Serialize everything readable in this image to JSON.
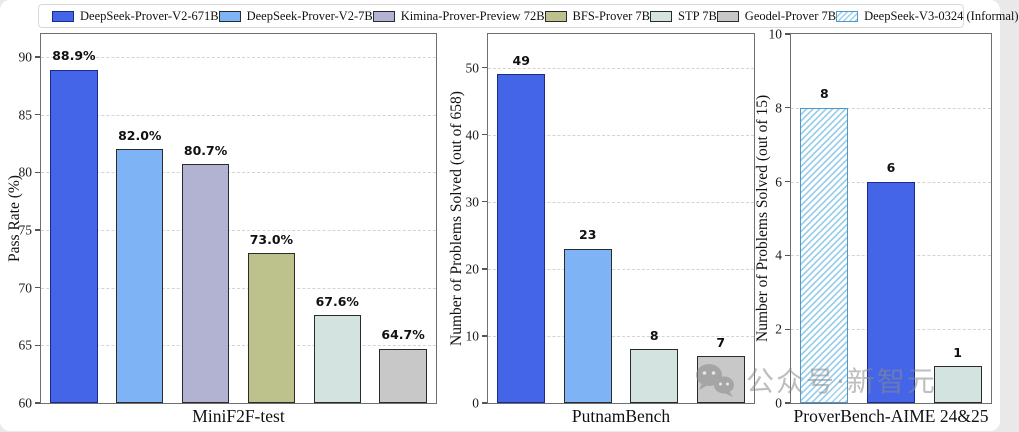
{
  "legend": {
    "items": [
      {
        "name": "DeepSeek-Prover-V2-671B",
        "fill": "#4565E8",
        "edge": "#1c2b87",
        "hatch": false
      },
      {
        "name": "DeepSeek-Prover-V2-7B",
        "fill": "#7EB3F5",
        "edge": "#2b2b2b",
        "hatch": false
      },
      {
        "name": "Kimina-Prover-Preview 72B",
        "fill": "#B2B3D3",
        "edge": "#2b2b2b",
        "hatch": false
      },
      {
        "name": "BFS-Prover 7B",
        "fill": "#BDC18C",
        "edge": "#2b2b2b",
        "hatch": false
      },
      {
        "name": "STP 7B",
        "fill": "#D3E3DF",
        "edge": "#2b2b2b",
        "hatch": false
      },
      {
        "name": "Geodel-Prover 7B",
        "fill": "#C8C8C8",
        "edge": "#2b2b2b",
        "hatch": false
      },
      {
        "name": "DeepSeek-V3-0324 (Informal)",
        "fill": "#FFFFFF",
        "edge": "#4E97C9",
        "hatch": true,
        "hatch_color": "#9FCFE9"
      }
    ]
  },
  "chart_data": [
    {
      "type": "bar",
      "xlabel": "MiniF2F-test",
      "ylabel": "Pass Rate (%)",
      "ylim": [
        60,
        92
      ],
      "yticks": [
        60,
        65,
        70,
        75,
        80,
        85,
        90
      ],
      "grid": "dashed-horizontal",
      "bars": [
        {
          "series": "DeepSeek-Prover-V2-671B",
          "value": 88.9,
          "label": "88.9%"
        },
        {
          "series": "DeepSeek-Prover-V2-7B",
          "value": 82.0,
          "label": "82.0%"
        },
        {
          "series": "Kimina-Prover-Preview 72B",
          "value": 80.7,
          "label": "80.7%"
        },
        {
          "series": "BFS-Prover 7B",
          "value": 73.0,
          "label": "73.0%"
        },
        {
          "series": "STP 7B",
          "value": 67.6,
          "label": "67.6%"
        },
        {
          "series": "Geodel-Prover 7B",
          "value": 64.7,
          "label": "64.7%"
        }
      ]
    },
    {
      "type": "bar",
      "xlabel": "PutnamBench",
      "ylabel": "Number of Problems Solved (out of 658)",
      "ylim": [
        0,
        55
      ],
      "yticks": [
        0,
        10,
        20,
        30,
        40,
        50
      ],
      "grid": "dashed-horizontal",
      "bars": [
        {
          "series": "DeepSeek-Prover-V2-671B",
          "value": 49,
          "label": "49"
        },
        {
          "series": "DeepSeek-Prover-V2-7B",
          "value": 23,
          "label": "23"
        },
        {
          "series": "STP 7B",
          "value": 8,
          "label": "8"
        },
        {
          "series": "Geodel-Prover 7B",
          "value": 7,
          "label": "7"
        }
      ]
    },
    {
      "type": "bar",
      "xlabel": "ProverBench-AIME 24&25",
      "ylabel": "Number of Problems Solved (out of 15)",
      "ylim": [
        0,
        10
      ],
      "yticks": [
        0,
        2,
        4,
        6,
        8,
        10
      ],
      "grid": "dashed-horizontal",
      "bars": [
        {
          "series": "DeepSeek-V3-0324 (Informal)",
          "value": 8,
          "label": "8"
        },
        {
          "series": "DeepSeek-Prover-V2-671B",
          "value": 6,
          "label": "6"
        },
        {
          "series": "STP 7B",
          "value": 1,
          "label": "1"
        }
      ]
    }
  ],
  "watermark": {
    "text": "公众号·新智元"
  }
}
